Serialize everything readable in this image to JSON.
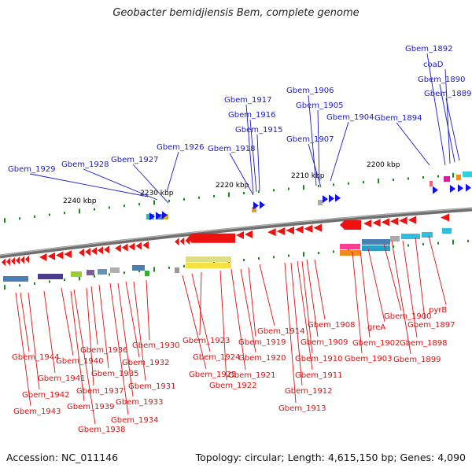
{
  "title": "Geobacter bemidjiensis Bem, complete genome",
  "footer": {
    "accession": "Accession: NC_011146",
    "summary": "Topology: circular; Length: 4,615,150 bp; Genes: 4,090"
  },
  "colors": {
    "forward_label": "#1a1acc",
    "reverse_label": "#dd1111",
    "forward_gene": "#1010ee",
    "reverse_gene": "#ee1111",
    "tick": "#1a8a1a",
    "backbone": "#888888"
  },
  "scale_ticks": [
    "2240 kbp",
    "2230 kbp",
    "2220 kbp",
    "2210 kbp",
    "2200 kbp"
  ],
  "forward_genes": [
    "Gbem_1929",
    "Gbem_1928",
    "Gbem_1927",
    "Gbem_1926",
    "Gbem_1918",
    "Gbem_1917",
    "Gbem_1916",
    "Gbem_1915",
    "Gbem_1907",
    "Gbem_1906",
    "Gbem_1905",
    "Gbem_1904",
    "Gbem_1894",
    "Gbem_1892",
    "coaD",
    "Gbem_1890",
    "Gbem_1889"
  ],
  "reverse_genes": [
    "Gbem_1944",
    "Gbem_1943",
    "Gbem_1942",
    "Gbem_1941",
    "Gbem_1940",
    "Gbem_1939",
    "Gbem_1938",
    "Gbem_1937",
    "Gbem_1936",
    "Gbem_1935",
    "Gbem_1934",
    "Gbem_1933",
    "Gbem_1932",
    "Gbem_1931",
    "Gbem_1930",
    "Gbem_1925",
    "Gbem_1924",
    "Gbem_1923",
    "Gbem_1922",
    "Gbem_1921",
    "Gbem_1920",
    "Gbem_1919",
    "Gbem_1914",
    "Gbem_1913",
    "Gbem_1912",
    "Gbem_1911",
    "Gbem_1910",
    "Gbem_1909",
    "Gbem_1908",
    "Gbem_1903",
    "Gbem_1902",
    "greA",
    "Gbem_1900",
    "Gbem_1899",
    "Gbem_1898",
    "Gbem_1897",
    "pyrB"
  ]
}
